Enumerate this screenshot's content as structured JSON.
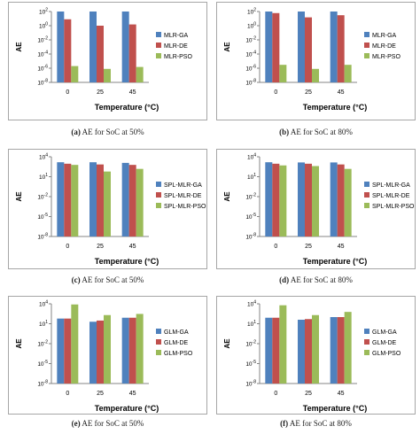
{
  "colors": {
    "series": [
      "#4f81bd",
      "#c0504d",
      "#9bbb59"
    ],
    "axis": "#868686",
    "text": "#000000"
  },
  "charts": [
    {
      "caption_letter": "(a)",
      "caption_text": "AE for SoC at 50%",
      "chart_data": {
        "type": "bar",
        "ylabel": "AE",
        "xlabel": "Temperature (°C)",
        "yscale": "log",
        "ylim_exp": [
          -8,
          2
        ],
        "ytick_exps": [
          2,
          0,
          -2,
          -4,
          -6,
          -8
        ],
        "categories": [
          "0",
          "25",
          "45"
        ],
        "series": [
          {
            "name": "MLR-GA",
            "values": [
              200,
              120,
              180
            ]
          },
          {
            "name": "MLR-DE",
            "values": [
              8,
              1,
              1.5
            ]
          },
          {
            "name": "MLR-PSO",
            "values": [
              2e-06,
              8e-07,
              1.5e-06
            ]
          }
        ]
      }
    },
    {
      "caption_letter": "(b)",
      "caption_text": "AE for SoC at 80%",
      "chart_data": {
        "type": "bar",
        "ylabel": "AE",
        "xlabel": "Temperature (°C)",
        "yscale": "log",
        "ylim_exp": [
          -8,
          2
        ],
        "ytick_exps": [
          2,
          0,
          -2,
          -4,
          -6,
          -8
        ],
        "categories": [
          "0",
          "25",
          "45"
        ],
        "series": [
          {
            "name": "MLR-GA",
            "values": [
              180,
              150,
              150
            ]
          },
          {
            "name": "MLR-DE",
            "values": [
              60,
              15,
              30
            ]
          },
          {
            "name": "MLR-PSO",
            "values": [
              3e-06,
              8e-07,
              3e-06
            ]
          }
        ]
      }
    },
    {
      "caption_letter": "(c)",
      "caption_text": "AE for SoC at 50%",
      "chart_data": {
        "type": "bar",
        "ylabel": "AE",
        "xlabel": "Temperature (°C)",
        "yscale": "log",
        "ylim_exp": [
          -8,
          4
        ],
        "ytick_exps": [
          4,
          1,
          -2,
          -5,
          -8
        ],
        "categories": [
          "0",
          "25",
          "45"
        ],
        "series": [
          {
            "name": "SPL-MLR-GA",
            "values": [
              1500,
              1500,
              1200
            ]
          },
          {
            "name": "SPL-MLR-DE",
            "values": [
              900,
              700,
              600
            ]
          },
          {
            "name": "SPL-MLR-PSO",
            "values": [
              600,
              60,
              150
            ]
          }
        ]
      }
    },
    {
      "caption_letter": "(d)",
      "caption_text": "AE for SoC at 80%",
      "chart_data": {
        "type": "bar",
        "ylabel": "AE",
        "xlabel": "Temperature (°C)",
        "yscale": "log",
        "ylim_exp": [
          -8,
          4
        ],
        "ytick_exps": [
          4,
          1,
          -2,
          -5,
          -8
        ],
        "categories": [
          "0",
          "25",
          "45"
        ],
        "series": [
          {
            "name": "SPL-MLR-GA",
            "values": [
              1500,
              1400,
              1400
            ]
          },
          {
            "name": "SPL-MLR-DE",
            "values": [
              900,
              900,
              700
            ]
          },
          {
            "name": "SPL-MLR-PSO",
            "values": [
              500,
              400,
              150
            ]
          }
        ]
      }
    },
    {
      "caption_letter": "(e)",
      "caption_text": "AE for SoC at 50%",
      "chart_data": {
        "type": "bar",
        "ylabel": "AE",
        "xlabel": "Temperature (°C)",
        "yscale": "log",
        "ylim_exp": [
          -8,
          4
        ],
        "ytick_exps": [
          4,
          1,
          -2,
          -5,
          -8
        ],
        "categories": [
          "0",
          "25",
          "45"
        ],
        "series": [
          {
            "name": "GLM-GA",
            "values": [
              60,
              20,
              80
            ]
          },
          {
            "name": "GLM-DE",
            "values": [
              60,
              30,
              80
            ]
          },
          {
            "name": "GLM-PSO",
            "values": [
              8000,
              200,
              300
            ]
          }
        ]
      }
    },
    {
      "caption_letter": "(f)",
      "caption_text": "AE for SoC at 80%",
      "chart_data": {
        "type": "bar",
        "ylabel": "AE",
        "xlabel": "Temperature (°C)",
        "yscale": "log",
        "ylim_exp": [
          -8,
          4
        ],
        "ytick_exps": [
          4,
          1,
          -2,
          -5,
          -8
        ],
        "categories": [
          "0",
          "25",
          "45"
        ],
        "series": [
          {
            "name": "GLM-GA",
            "values": [
              80,
              40,
              100
            ]
          },
          {
            "name": "GLM-DE",
            "values": [
              80,
              50,
              100
            ]
          },
          {
            "name": "GLM-PSO",
            "values": [
              6000,
              200,
              600
            ]
          }
        ]
      }
    }
  ]
}
